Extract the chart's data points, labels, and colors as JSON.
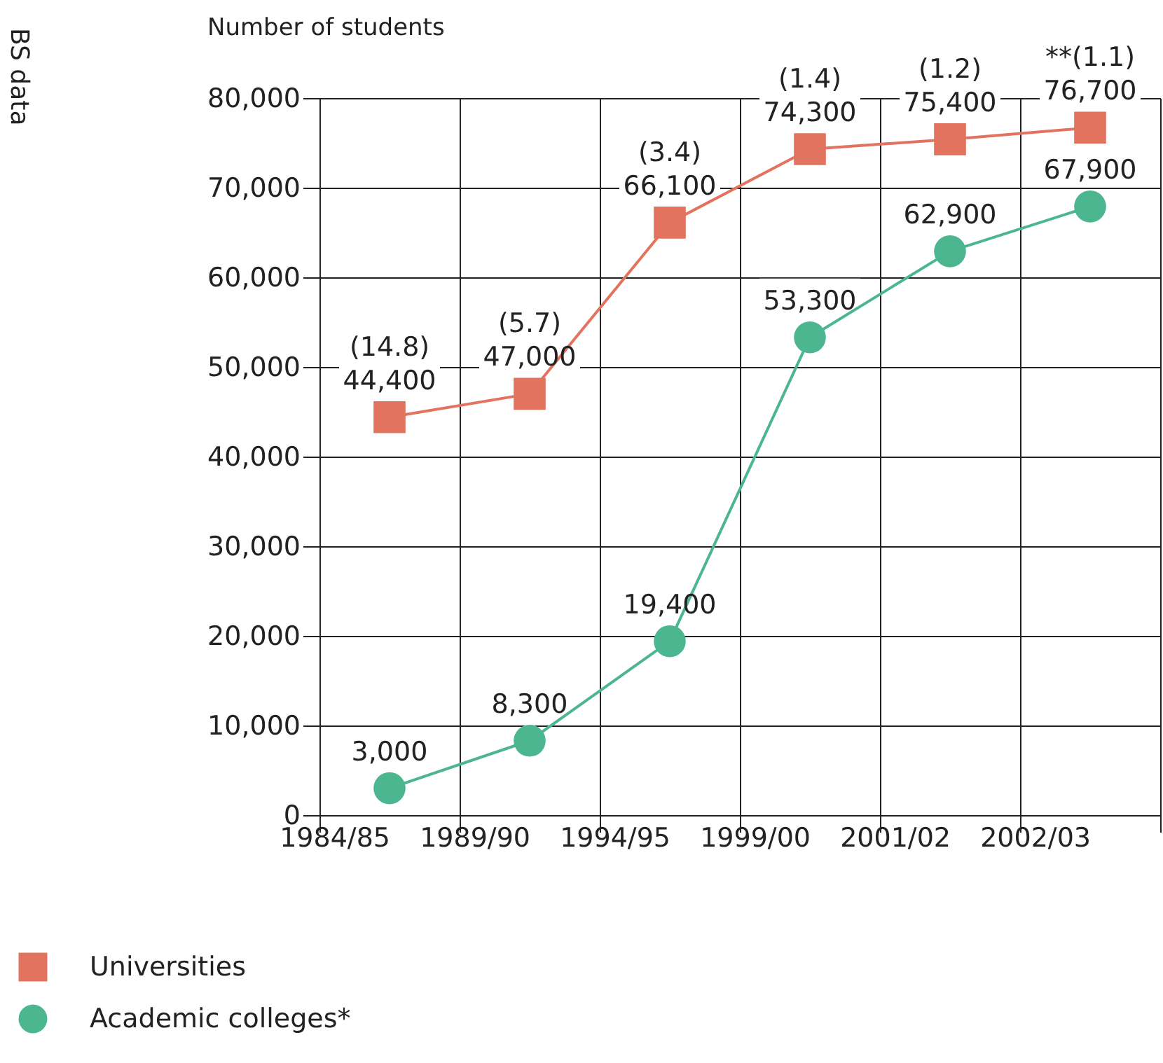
{
  "chart_data": {
    "type": "line",
    "ylabel": "Number of students",
    "categories": [
      "1984/85",
      "1989/90",
      "1994/95",
      "1999/00",
      "2001/02",
      "2002/03"
    ],
    "series": [
      {
        "name": "Universities",
        "color": "#e2735f",
        "marker": "square",
        "values": [
          44400,
          47000,
          66100,
          74300,
          75400,
          76700
        ],
        "value_labels": [
          "(14.8)\n44,400",
          "(5.7)\n47,000",
          "(3.4)\n66,100",
          "(1.4)\n74,300",
          "(1.2)\n75,400",
          "**(1.1)\n76,700"
        ]
      },
      {
        "name": "Academic colleges*",
        "color": "#4bb68f",
        "marker": "circle",
        "values": [
          3000,
          8300,
          19400,
          53300,
          62900,
          67900
        ],
        "value_labels": [
          "3,000",
          "8,300",
          "19,400",
          "53,300",
          "62,900",
          "67,900"
        ]
      }
    ],
    "ylim": [
      0,
      80000
    ],
    "yticks": [
      0,
      {
        "value": 10000,
        "label": "10,000"
      },
      {
        "value": 20000,
        "label": "20,000"
      },
      {
        "value": 30000,
        "label": "30,000"
      },
      {
        "value": 40000,
        "label": "40,000"
      },
      {
        "value": 50000,
        "label": "50,000"
      },
      {
        "value": 60000,
        "label": "60,000"
      },
      {
        "value": 70000,
        "label": "70,000"
      },
      {
        "value": 80000,
        "label": "80,000"
      }
    ],
    "grid": true,
    "legend": "bottom left",
    "annotations": [
      "BS data"
    ]
  }
}
